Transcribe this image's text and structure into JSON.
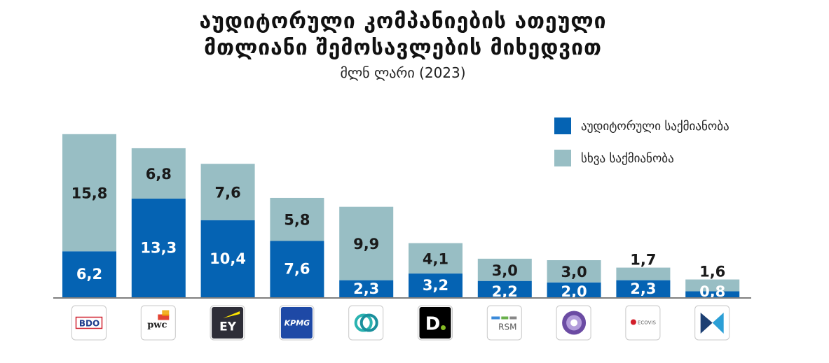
{
  "title": {
    "line1": "აუდიტორული კომპანიების ათეული",
    "line2": "მთლიანი შემოსავლების მიხედვით",
    "subtitle": "მლნ ლარი (2023)"
  },
  "colors": {
    "audit": "#0563b3",
    "other": "#98bec4",
    "audit_text": "#ffffff",
    "other_text": "#1a1a1a",
    "axis": "#555555"
  },
  "chart_data": {
    "type": "bar",
    "stacked": true,
    "categories": [
      "BDO",
      "PwC",
      "EY",
      "KPMG",
      "",
      "Deloitte",
      "RSM",
      "",
      "ECOVIS Georgia",
      ""
    ],
    "series": [
      {
        "name": "აუდიტორული საქმიანობა",
        "values": [
          6.2,
          13.3,
          10.4,
          7.6,
          2.3,
          3.2,
          2.2,
          2.0,
          2.3,
          0.8
        ]
      },
      {
        "name": "სხვა საქმიანობა",
        "values": [
          15.8,
          6.8,
          7.6,
          5.8,
          9.9,
          4.1,
          3.0,
          3.0,
          1.7,
          1.6
        ]
      }
    ],
    "series_labels": [
      [
        "6,2",
        "13,3",
        "10,4",
        "7,6",
        "2,3",
        "3,2",
        "2,2",
        "2,0",
        "2,3",
        "0,8"
      ],
      [
        "15,8",
        "6,8",
        "7,6",
        "5,8",
        "9,9",
        "4,1",
        "3,0",
        "3,0",
        "1,7",
        "1,6"
      ]
    ],
    "ylim": [
      0,
      22
    ],
    "grid": false,
    "legend_position": "top-right"
  },
  "logos": [
    {
      "name": "bdo-logo",
      "text": "BDO"
    },
    {
      "name": "pwc-logo",
      "text": "pwc"
    },
    {
      "name": "ey-logo",
      "text": "EY"
    },
    {
      "name": "kpmg-logo",
      "text": "KPMG"
    },
    {
      "name": "circular-rings-logo",
      "text": ""
    },
    {
      "name": "deloitte-logo",
      "text": "D."
    },
    {
      "name": "rsm-logo",
      "text": "RSM"
    },
    {
      "name": "purple-swirl-logo",
      "text": ""
    },
    {
      "name": "ecovis-logo",
      "text": "ECOVIS"
    },
    {
      "name": "triangle-logo",
      "text": ""
    }
  ]
}
